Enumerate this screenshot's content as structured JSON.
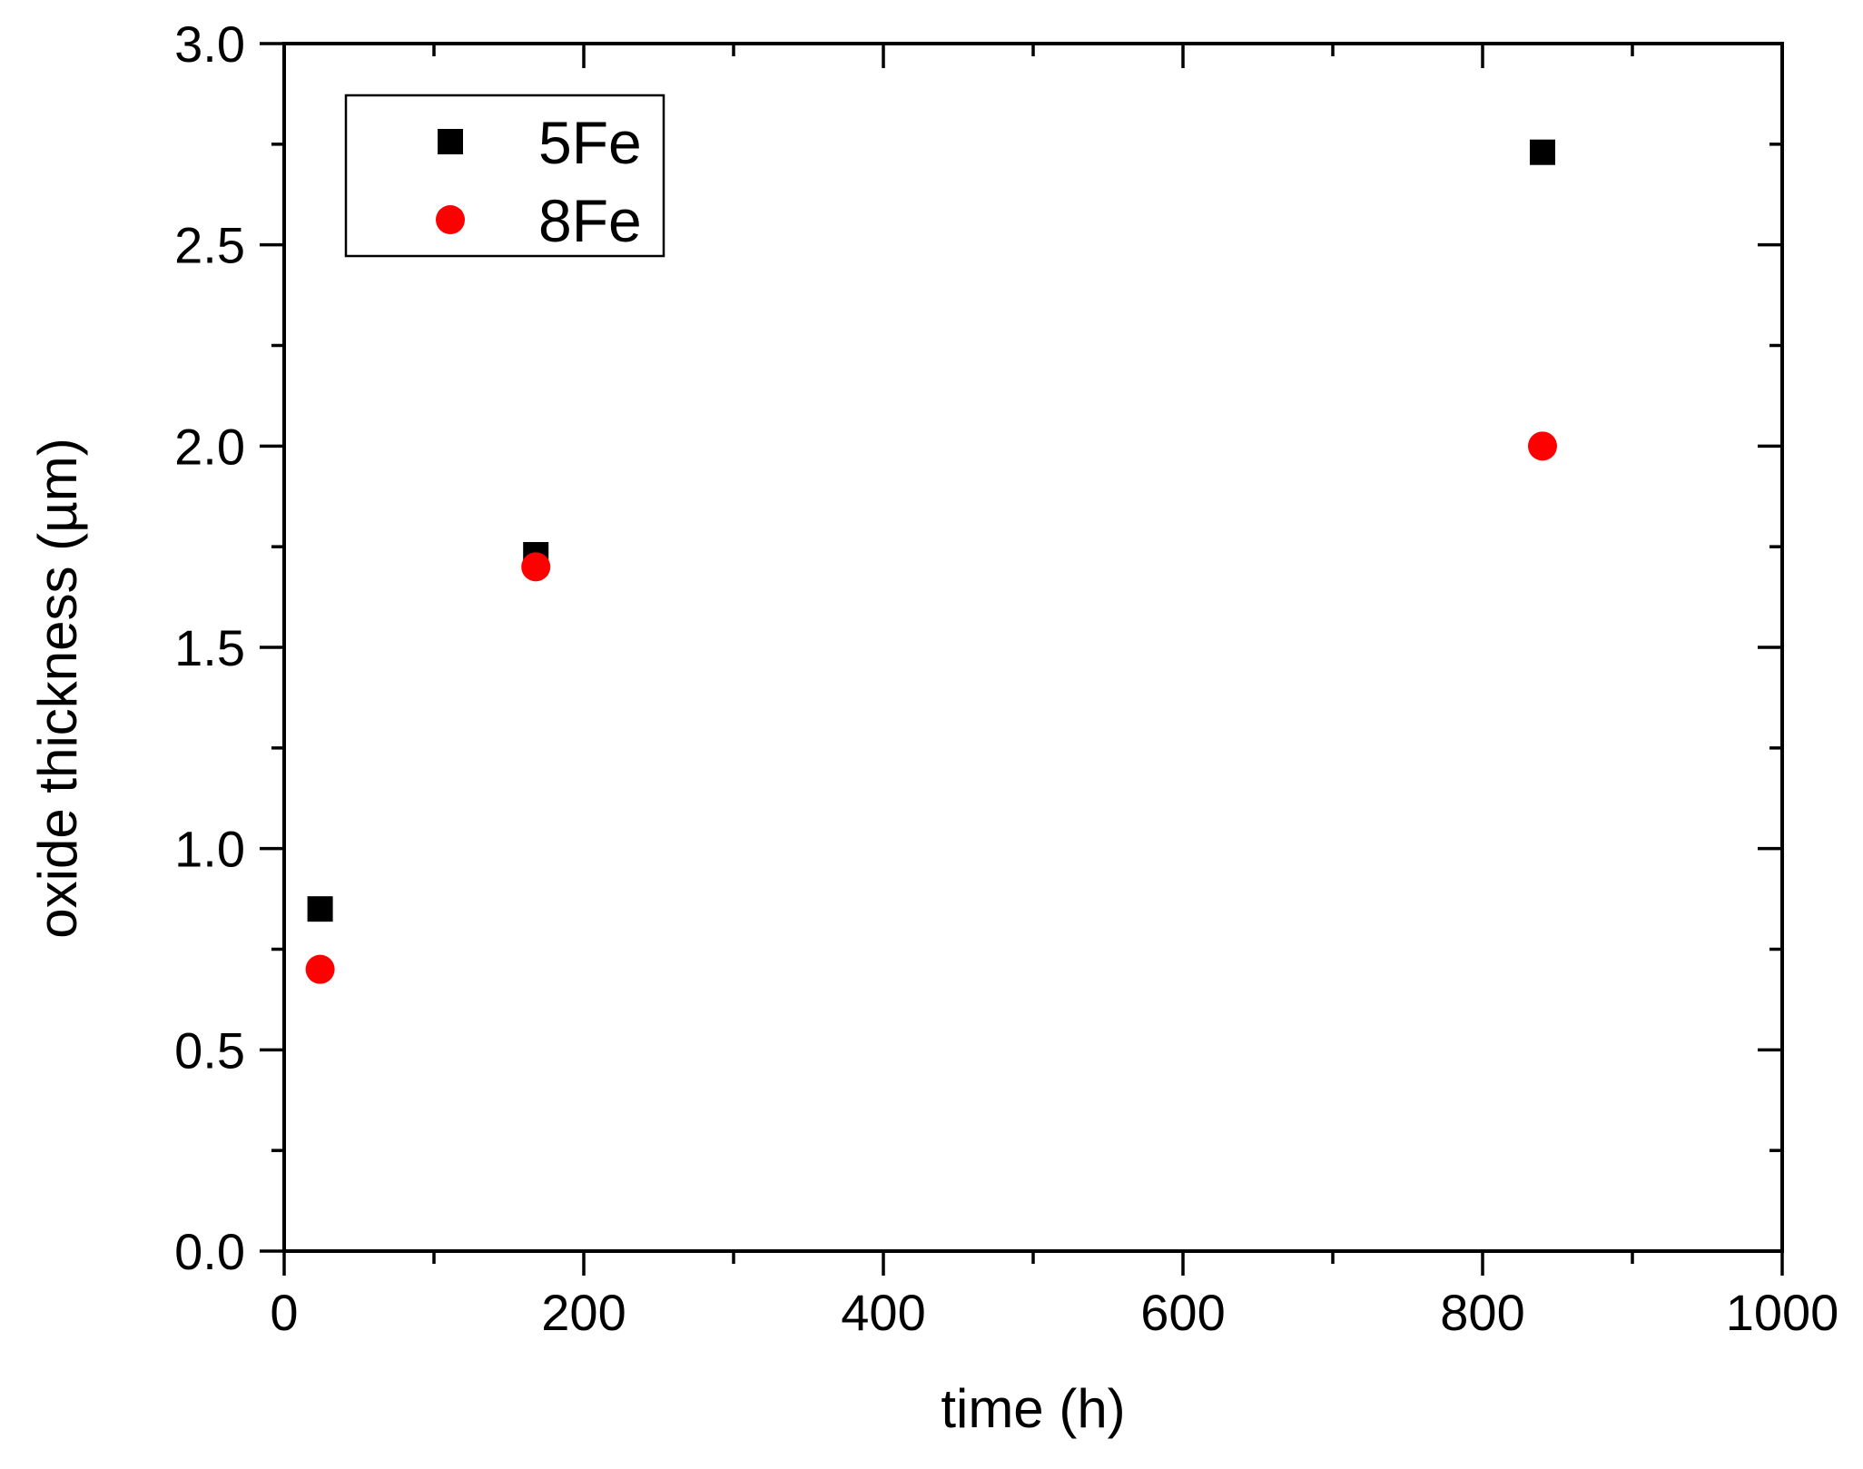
{
  "chart_data": {
    "type": "scatter",
    "title": "",
    "xlabel": "time (h)",
    "ylabel": "oxide thickness (µm)",
    "xlim": [
      0,
      1000
    ],
    "ylim": [
      0.0,
      3.0
    ],
    "x_ticks": [
      0,
      200,
      400,
      600,
      800,
      1000
    ],
    "x_tick_labels": [
      "0",
      "200",
      "400",
      "600",
      "800",
      "1000"
    ],
    "x_minor_ticks": [
      100,
      300,
      500,
      700,
      900
    ],
    "y_ticks": [
      0.0,
      0.5,
      1.0,
      1.5,
      2.0,
      2.5,
      3.0
    ],
    "y_tick_labels": [
      "0.0",
      "0.5",
      "1.0",
      "1.5",
      "2.0",
      "2.5",
      "3.0"
    ],
    "y_minor_ticks": [
      0.25,
      0.75,
      1.25,
      1.75,
      2.25,
      2.75
    ],
    "grid": false,
    "legend_position": "upper left",
    "series": [
      {
        "name": "5Fe",
        "marker": "square",
        "color": "#000000",
        "x": [
          24,
          168,
          840
        ],
        "y": [
          0.85,
          1.73,
          2.73
        ]
      },
      {
        "name": "8Fe",
        "marker": "circle",
        "color": "#ff0000",
        "x": [
          24,
          168,
          840
        ],
        "y": [
          0.7,
          1.7,
          2.0
        ]
      }
    ]
  }
}
